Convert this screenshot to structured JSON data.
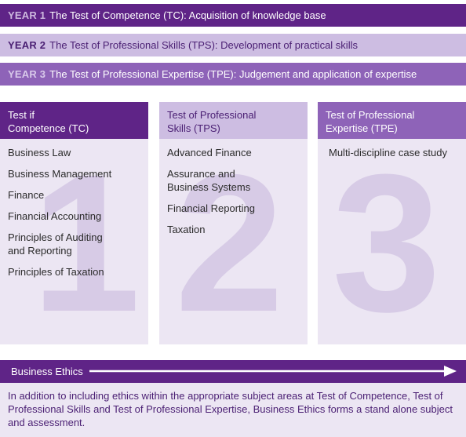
{
  "years": [
    {
      "year_label": "YEAR 1",
      "description": "The Test of Competence (TC): Acquisition of knowledge base"
    },
    {
      "year_label": "YEAR 2",
      "description": "The Test of Professional Skills (TPS): Development of practical skills"
    },
    {
      "year_label": "YEAR 3",
      "description": "The Test of Professional Expertise (TPE): Judgement and application of expertise"
    }
  ],
  "columns": [
    {
      "title": "Test if\nCompetence (TC)",
      "number": "1",
      "subjects": [
        "Business Law",
        "Business Management",
        "Finance",
        "Financial Accounting",
        "Principles of Auditing\nand Reporting",
        "Principles of Taxation"
      ]
    },
    {
      "title": "Test of Professional\nSkills (TPS)",
      "number": "2",
      "subjects": [
        "Advanced Finance",
        "Assurance and\nBusiness Systems",
        "Financial Reporting",
        "Taxation"
      ]
    },
    {
      "title": "Test of Professional\nExpertise (TPE)",
      "number": "3",
      "subjects": [
        "Multi-discipline case study"
      ]
    }
  ],
  "ethics": {
    "title": "Business Ethics",
    "description": "In addition to including ethics within the appropriate subject areas at Test of Competence, Test of Professional Skills and Test of Professional Expertise, Business Ethics forms a stand alone subject and assessment."
  },
  "colors": {
    "dark_purple": "#5f2487",
    "medium_purple": "#8e63b8",
    "light_purple": "#cdbde2",
    "pale_lavender": "#ece6f3",
    "big_number": "#d7cbe6"
  }
}
